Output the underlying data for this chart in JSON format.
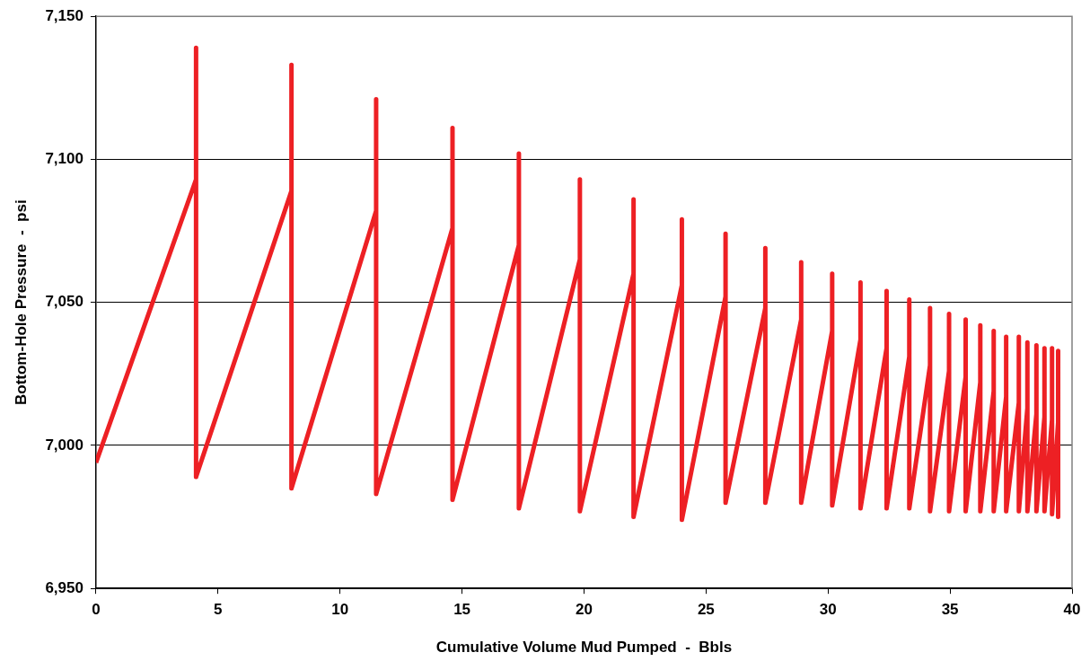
{
  "chart_data": {
    "type": "line",
    "xlabel": "Cumulative Volume Mud Pumped  -  Bbls",
    "ylabel": "Bottom-Hole Pressure  -  psi",
    "xlim": [
      0,
      40
    ],
    "xticks": [
      0,
      5,
      10,
      15,
      20,
      25,
      30,
      35,
      40
    ],
    "ylim": [
      6950,
      7150
    ],
    "yticks": [
      {
        "value": 6950,
        "label": "6,950"
      },
      {
        "value": 7000,
        "label": "7,000"
      },
      {
        "value": 7050,
        "label": "7,050"
      },
      {
        "value": 7100,
        "label": "7,100"
      },
      {
        "value": 7150,
        "label": "7,150"
      }
    ],
    "grid": "y",
    "legend": false,
    "marker": "none",
    "line_style": "solid",
    "series": [
      {
        "color": "#ed2024",
        "x": [
          0,
          4.1,
          4.1,
          4.1,
          8.01,
          8.01,
          8.01,
          11.48,
          11.48,
          11.48,
          14.61,
          14.61,
          14.61,
          17.33,
          17.33,
          17.33,
          19.83,
          19.83,
          19.83,
          22.03,
          22.03,
          22.03,
          24.01,
          24.01,
          24.01,
          25.8,
          25.8,
          25.8,
          27.43,
          27.43,
          27.43,
          28.9,
          28.9,
          28.9,
          30.17,
          30.17,
          30.17,
          31.33,
          31.33,
          31.33,
          32.4,
          32.4,
          32.4,
          33.33,
          33.33,
          33.33,
          34.18,
          34.18,
          34.18,
          34.96,
          34.96,
          34.96,
          35.64,
          35.64,
          35.64,
          36.24,
          36.24,
          36.24,
          36.79,
          36.79,
          36.79,
          37.3,
          37.3,
          37.3,
          37.82,
          37.82,
          37.82,
          38.17,
          38.17,
          38.17,
          38.54,
          38.54,
          38.54,
          38.87,
          38.87,
          38.87,
          39.18,
          39.18,
          39.18,
          39.43,
          39.43,
          39.43
        ],
        "values": [
          6994,
          7093,
          7139,
          6989,
          7089,
          7133,
          6985,
          7082,
          7121,
          6983,
          7076,
          7111,
          6981,
          7070,
          7102,
          6978,
          7065,
          7093,
          6977,
          7060,
          7086,
          6975,
          7056,
          7079,
          6974,
          7052,
          7074,
          6980,
          7048,
          7069,
          6980,
          7044,
          7064,
          6980,
          7040,
          7060,
          6979,
          7037,
          7057,
          6978,
          7034,
          7054,
          6978,
          7031,
          7051,
          6978,
          7028,
          7048,
          6977,
          7026,
          7046,
          6977,
          7024,
          7044,
          6977,
          7022,
          7042,
          6977,
          7019,
          7040,
          6977,
          7017,
          7038,
          6977,
          7015,
          7038,
          6977,
          7013,
          7036,
          6977,
          7011,
          7035,
          6977,
          7010,
          7034,
          6977,
          7009,
          7034,
          6976,
          7008,
          7033,
          6975
        ]
      }
    ]
  }
}
